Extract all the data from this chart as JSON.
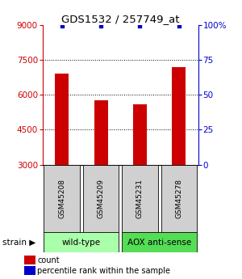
{
  "title": "GDS1532 / 257749_at",
  "samples": [
    "GSM45208",
    "GSM45209",
    "GSM45231",
    "GSM45278"
  ],
  "bar_values": [
    6900,
    5750,
    5600,
    7200
  ],
  "percentile_values": [
    8950,
    8950,
    8950,
    8950
  ],
  "ylim_left": [
    3000,
    9000
  ],
  "ylim_right": [
    0,
    100
  ],
  "yticks_left": [
    3000,
    4500,
    6000,
    7500,
    9000
  ],
  "yticks_right": [
    0,
    25,
    50,
    75,
    100
  ],
  "bar_color": "#cc0000",
  "percentile_color": "#0000cc",
  "groups": [
    {
      "label": "wild-type",
      "color": "#aaffaa",
      "start": 0,
      "end": 1
    },
    {
      "label": "AOX anti-sense",
      "color": "#55dd55",
      "start": 2,
      "end": 3
    }
  ],
  "legend_count_color": "#cc0000",
  "legend_percentile_color": "#0000cc",
  "background_color": "#ffffff",
  "sample_box_color": "#d0d0d0",
  "fig_width": 3.0,
  "fig_height": 3.45,
  "dpi": 100
}
